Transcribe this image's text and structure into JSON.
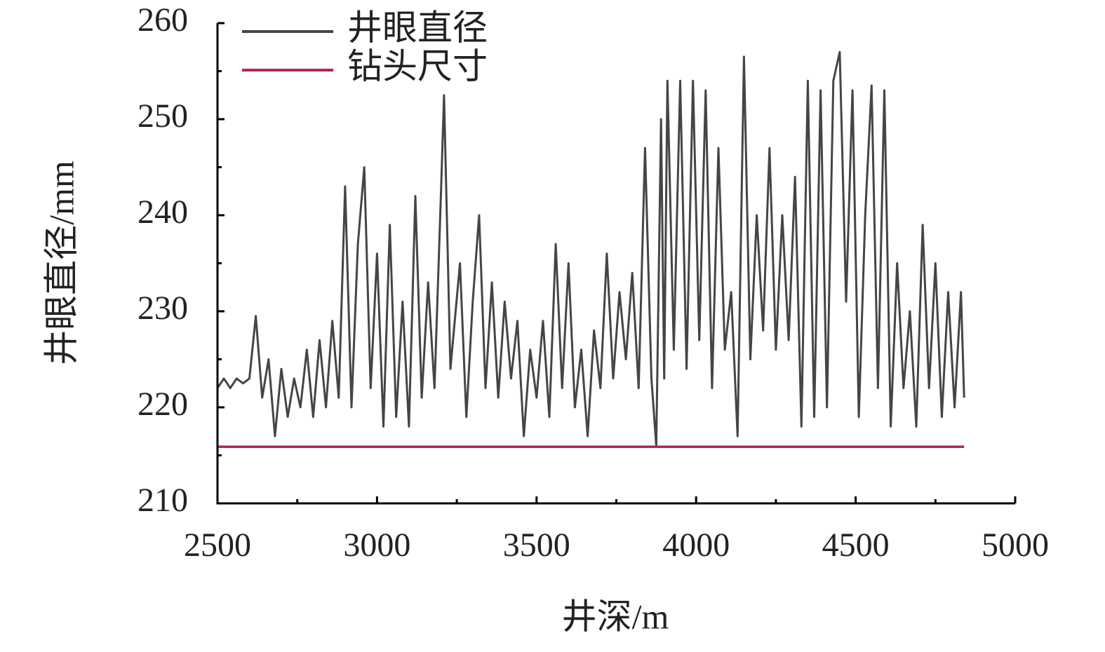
{
  "chart_data": {
    "type": "line",
    "xlabel": "井深/m",
    "ylabel": "井眼直径/mm",
    "xlim": [
      2500,
      5000
    ],
    "xticks": [
      2500,
      3000,
      3500,
      4000,
      4500,
      5000
    ],
    "xminorticks": [
      2750,
      3250,
      3750,
      4250,
      4750
    ],
    "ylim": [
      210,
      260
    ],
    "yticks": [
      210,
      220,
      230,
      240,
      250,
      260
    ],
    "yminorticks": [
      215,
      225,
      235,
      245,
      255
    ],
    "legend": "upper left",
    "series": [
      {
        "name": "井眼直径",
        "color": "#454545",
        "x": [
          2500,
          2520,
          2540,
          2560,
          2580,
          2600,
          2620,
          2640,
          2660,
          2680,
          2700,
          2720,
          2740,
          2760,
          2780,
          2800,
          2820,
          2840,
          2860,
          2880,
          2900,
          2920,
          2940,
          2960,
          2980,
          3000,
          3020,
          3040,
          3060,
          3080,
          3100,
          3120,
          3140,
          3160,
          3180,
          3200,
          3210,
          3230,
          3260,
          3280,
          3300,
          3320,
          3340,
          3360,
          3380,
          3400,
          3420,
          3440,
          3460,
          3480,
          3500,
          3520,
          3540,
          3560,
          3580,
          3600,
          3620,
          3640,
          3660,
          3680,
          3700,
          3720,
          3740,
          3760,
          3780,
          3800,
          3820,
          3840,
          3860,
          3875,
          3890,
          3900,
          3910,
          3930,
          3950,
          3970,
          3990,
          4010,
          4030,
          4050,
          4070,
          4090,
          4110,
          4130,
          4150,
          4170,
          4190,
          4210,
          4230,
          4250,
          4270,
          4290,
          4310,
          4330,
          4350,
          4370,
          4390,
          4410,
          4430,
          4450,
          4470,
          4490,
          4510,
          4530,
          4550,
          4570,
          4590,
          4610,
          4630,
          4650,
          4670,
          4690,
          4710,
          4730,
          4750,
          4770,
          4790,
          4810,
          4830,
          4840
        ],
        "values": [
          222,
          223,
          222,
          223,
          222.5,
          223,
          229.5,
          221,
          225,
          217,
          224,
          219,
          223,
          220,
          226,
          219,
          227,
          220,
          229,
          221,
          243,
          220,
          237,
          245,
          222,
          236,
          218,
          239,
          219,
          231,
          218,
          242,
          221,
          233,
          222,
          242,
          252.5,
          224,
          235,
          219,
          231,
          240,
          222,
          233,
          221,
          231,
          223,
          229,
          217,
          226,
          221,
          229,
          219,
          237,
          222,
          235,
          220,
          226,
          217,
          228,
          222,
          236,
          223,
          232,
          225,
          234,
          222,
          247,
          223,
          216,
          250,
          223,
          254,
          226,
          254,
          224,
          254,
          227,
          253,
          222,
          247,
          226,
          232,
          217,
          256.5,
          225,
          240,
          228,
          247,
          226,
          240,
          227,
          244,
          218,
          254,
          219,
          253,
          220,
          254,
          257,
          231,
          253,
          219,
          240,
          253.5,
          222,
          253,
          218,
          235,
          222,
          230,
          218,
          239,
          222,
          235,
          219,
          232,
          220,
          232,
          221
        ]
      },
      {
        "name": "钻头尺寸",
        "color": "#b5264a",
        "x": [
          2500,
          4840
        ],
        "values": [
          215.9,
          215.9
        ]
      }
    ]
  }
}
